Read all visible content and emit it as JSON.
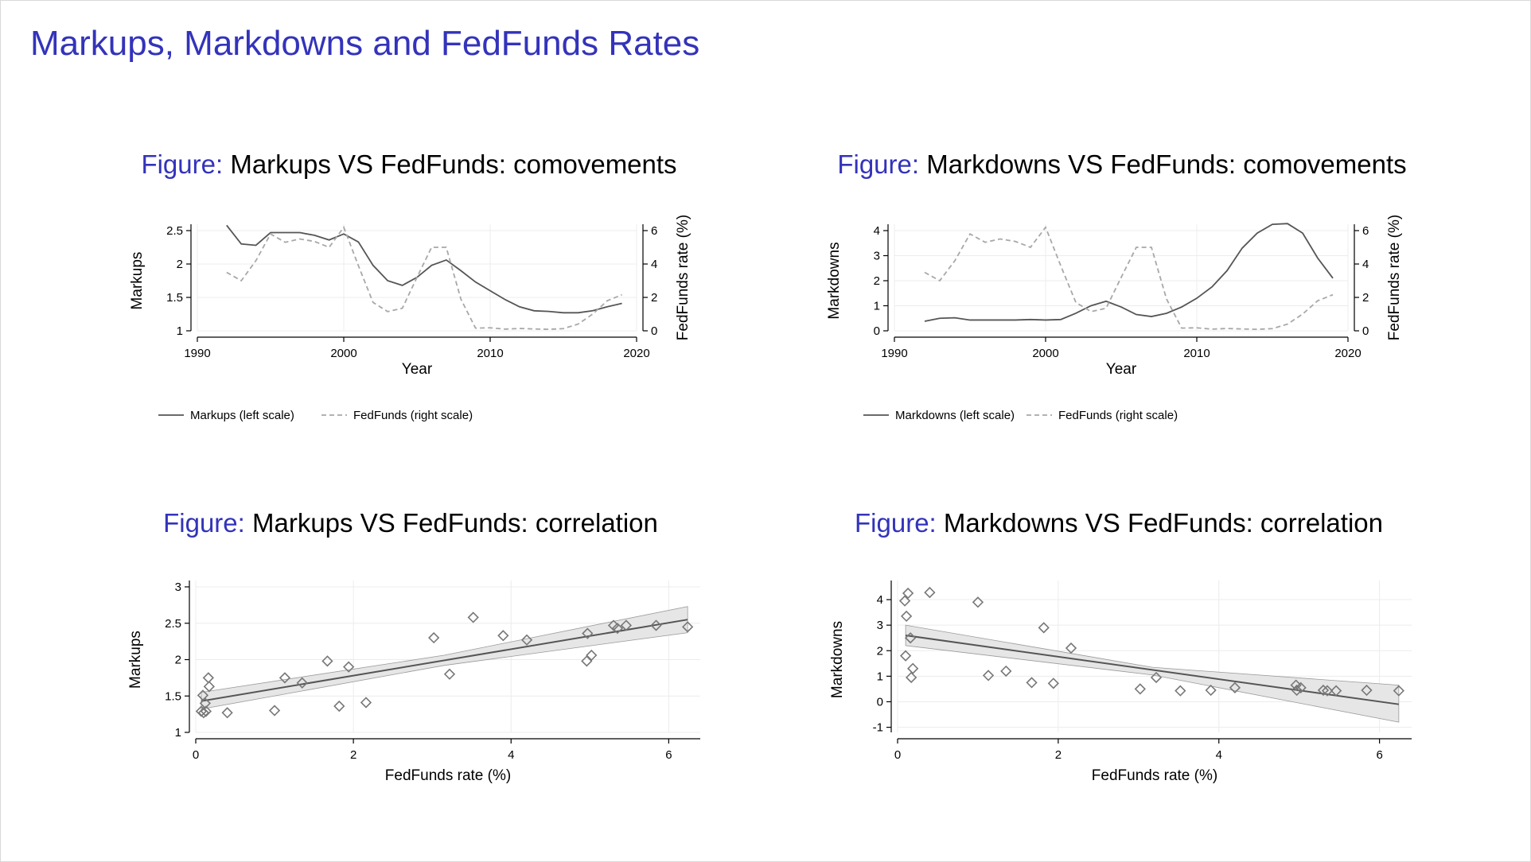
{
  "slide": {
    "title": "Markups, Markdowns and FedFunds Rates"
  },
  "figures": [
    {
      "label": "Figure:",
      "title": "Markups VS FedFunds: comovements"
    },
    {
      "label": "Figure:",
      "title": "Markdowns VS FedFunds: comovements"
    },
    {
      "label": "Figure:",
      "title": "Markups VS FedFunds: correlation"
    },
    {
      "label": "Figure:",
      "title": "Markdowns VS FedFunds: correlation"
    }
  ],
  "colors": {
    "accent": "#3333bb",
    "solid": "#555555",
    "dashed": "#a8a8a8",
    "marker": "#777777",
    "ci": "#e6e6e6"
  },
  "chart_data": [
    {
      "type": "line",
      "xlabel": "Year",
      "ylabel": "Markups",
      "y2label": "FedFunds rate (%)",
      "xlim": [
        1990,
        2020
      ],
      "ylim": [
        1,
        2.5
      ],
      "y2lim": [
        0,
        6
      ],
      "xticks": [
        1990,
        2000,
        2010,
        2020
      ],
      "yticks": [
        1,
        1.5,
        2,
        2.5
      ],
      "ytick_labels": [
        "1",
        "1.5",
        "2",
        "2.5"
      ],
      "y2ticks": [
        0,
        2,
        4,
        6
      ],
      "y2tick_labels": [
        "0",
        "2",
        "4",
        "6"
      ],
      "grid": true,
      "legend_position": "bottom",
      "x": [
        1992,
        1993,
        1994,
        1995,
        1996,
        1997,
        1998,
        1999,
        2000,
        2001,
        2002,
        2003,
        2004,
        2005,
        2006,
        2007,
        2008,
        2009,
        2010,
        2011,
        2012,
        2013,
        2014,
        2015,
        2016,
        2017,
        2018,
        2019
      ],
      "series": [
        {
          "name": "Markups (left scale)",
          "axis": "left",
          "style": "solid",
          "values": [
            2.58,
            2.3,
            2.28,
            2.47,
            2.47,
            2.47,
            2.43,
            2.36,
            2.45,
            2.33,
            1.98,
            1.75,
            1.68,
            1.8,
            1.98,
            2.06,
            1.9,
            1.73,
            1.6,
            1.47,
            1.36,
            1.3,
            1.29,
            1.27,
            1.27,
            1.3,
            1.36,
            1.41
          ]
        },
        {
          "name": "FedFunds (right scale)",
          "axis": "right",
          "style": "dashed",
          "values": [
            3.5,
            3.0,
            4.2,
            5.8,
            5.3,
            5.5,
            5.35,
            5.0,
            6.2,
            3.9,
            1.7,
            1.15,
            1.35,
            3.2,
            5.0,
            5.0,
            1.9,
            0.16,
            0.18,
            0.1,
            0.14,
            0.11,
            0.09,
            0.13,
            0.4,
            1.0,
            1.8,
            2.16
          ]
        }
      ]
    },
    {
      "type": "line",
      "xlabel": "Year",
      "ylabel": "Markdowns",
      "y2label": "FedFunds rate (%)",
      "xlim": [
        1990,
        2020
      ],
      "ylim": [
        0,
        4
      ],
      "y2lim": [
        0,
        6
      ],
      "xticks": [
        1990,
        2000,
        2010,
        2020
      ],
      "yticks": [
        0,
        1,
        2,
        3,
        4
      ],
      "ytick_labels": [
        "0",
        "1",
        "2",
        "3",
        "4"
      ],
      "y2ticks": [
        0,
        2,
        4,
        6
      ],
      "y2tick_labels": [
        "0",
        "2",
        "4",
        "6"
      ],
      "grid": true,
      "legend_position": "bottom",
      "x": [
        1992,
        1993,
        1994,
        1995,
        1996,
        1997,
        1998,
        1999,
        2000,
        2001,
        2002,
        2003,
        2004,
        2005,
        2006,
        2007,
        2008,
        2009,
        2010,
        2011,
        2012,
        2013,
        2014,
        2015,
        2016,
        2017,
        2018,
        2019
      ],
      "series": [
        {
          "name": "Markdowns (left scale)",
          "axis": "left",
          "style": "solid",
          "values": [
            0.38,
            0.5,
            0.52,
            0.43,
            0.43,
            0.43,
            0.43,
            0.45,
            0.43,
            0.45,
            0.7,
            1.0,
            1.18,
            0.95,
            0.65,
            0.57,
            0.7,
            0.95,
            1.3,
            1.75,
            2.4,
            3.3,
            3.9,
            4.25,
            4.28,
            3.9,
            2.9,
            2.1
          ]
        },
        {
          "name": "FedFunds (right scale)",
          "axis": "right",
          "style": "dashed",
          "values": [
            3.5,
            3.0,
            4.2,
            5.8,
            5.3,
            5.5,
            5.35,
            5.0,
            6.2,
            3.9,
            1.7,
            1.15,
            1.35,
            3.2,
            5.0,
            5.0,
            1.9,
            0.16,
            0.18,
            0.1,
            0.14,
            0.11,
            0.09,
            0.13,
            0.4,
            1.0,
            1.8,
            2.16
          ]
        }
      ]
    },
    {
      "type": "scatter",
      "xlabel": "FedFunds rate (%)",
      "ylabel": "Markups",
      "xlim": [
        0,
        6.4
      ],
      "ylim": [
        1,
        3
      ],
      "xticks": [
        0,
        2,
        4,
        6
      ],
      "xtick_labels": [
        "0",
        "2",
        "4",
        "6"
      ],
      "yticks": [
        1,
        1.5,
        2,
        2.5,
        3
      ],
      "ytick_labels": [
        "1",
        "1.5",
        "2",
        "2.5",
        "3"
      ],
      "grid": true,
      "points": [
        [
          0.07,
          1.29
        ],
        [
          0.09,
          1.51
        ],
        [
          0.1,
          1.27
        ],
        [
          0.13,
          1.29
        ],
        [
          0.12,
          1.4
        ],
        [
          0.16,
          1.75
        ],
        [
          0.17,
          1.63
        ],
        [
          0.4,
          1.27
        ],
        [
          1.0,
          1.3
        ],
        [
          1.13,
          1.75
        ],
        [
          1.35,
          1.68
        ],
        [
          1.67,
          1.98
        ],
        [
          1.82,
          1.36
        ],
        [
          1.94,
          1.9
        ],
        [
          2.16,
          1.41
        ],
        [
          3.02,
          2.3
        ],
        [
          3.22,
          1.8
        ],
        [
          3.52,
          2.58
        ],
        [
          3.9,
          2.33
        ],
        [
          4.2,
          2.27
        ],
        [
          4.96,
          1.98
        ],
        [
          4.97,
          2.36
        ],
        [
          5.02,
          2.06
        ],
        [
          5.3,
          2.47
        ],
        [
          5.35,
          2.43
        ],
        [
          5.46,
          2.47
        ],
        [
          5.84,
          2.47
        ],
        [
          6.24,
          2.45
        ]
      ],
      "fit": {
        "x": [
          0.07,
          6.24
        ],
        "y": [
          1.43,
          2.55
        ]
      },
      "ci": {
        "x": [
          0.07,
          3.15,
          6.24
        ],
        "lower": [
          1.32,
          1.92,
          2.37
        ],
        "upper": [
          1.55,
          2.06,
          2.73
        ]
      }
    },
    {
      "type": "scatter",
      "xlabel": "FedFunds rate (%)",
      "ylabel": "Markdowns",
      "xlim": [
        0,
        6.4
      ],
      "ylim": [
        -1.2,
        4.5
      ],
      "xticks": [
        0,
        2,
        4,
        6
      ],
      "xtick_labels": [
        "0",
        "2",
        "4",
        "6"
      ],
      "yticks": [
        -1,
        0,
        1,
        2,
        3,
        4
      ],
      "ytick_labels": [
        "-1",
        "0",
        "1",
        "2",
        "3",
        "4"
      ],
      "grid": true,
      "points": [
        [
          0.09,
          3.95
        ],
        [
          0.13,
          4.25
        ],
        [
          0.11,
          3.35
        ],
        [
          0.1,
          1.8
        ],
        [
          0.16,
          2.5
        ],
        [
          0.19,
          1.3
        ],
        [
          0.17,
          0.95
        ],
        [
          0.4,
          4.28
        ],
        [
          1.0,
          3.9
        ],
        [
          1.13,
          1.03
        ],
        [
          1.35,
          1.2
        ],
        [
          1.67,
          0.75
        ],
        [
          1.82,
          2.9
        ],
        [
          1.94,
          0.72
        ],
        [
          2.16,
          2.1
        ],
        [
          3.02,
          0.5
        ],
        [
          3.22,
          0.95
        ],
        [
          3.52,
          0.43
        ],
        [
          3.9,
          0.45
        ],
        [
          4.2,
          0.55
        ],
        [
          4.96,
          0.65
        ],
        [
          4.97,
          0.45
        ],
        [
          5.02,
          0.55
        ],
        [
          5.3,
          0.45
        ],
        [
          5.35,
          0.43
        ],
        [
          5.46,
          0.43
        ],
        [
          5.84,
          0.45
        ],
        [
          6.24,
          0.43
        ]
      ],
      "fit": {
        "x": [
          0.1,
          6.24
        ],
        "y": [
          2.6,
          -0.1
        ]
      },
      "ci": {
        "x": [
          0.1,
          3.17,
          6.24
        ],
        "lower": [
          2.2,
          1.05,
          -0.8
        ],
        "upper": [
          3.0,
          1.35,
          0.65
        ]
      }
    }
  ]
}
